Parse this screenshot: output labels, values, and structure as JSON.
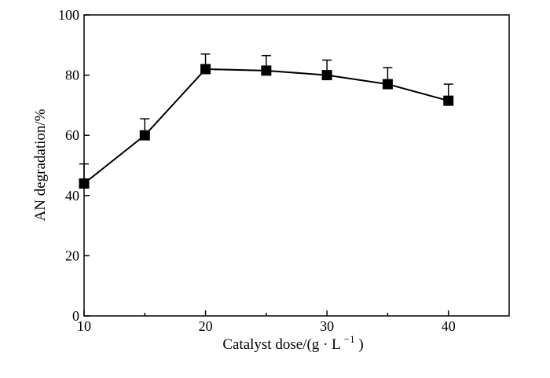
{
  "chart_data": {
    "type": "line",
    "xlabel_main": "Catalyst dose/(g · L",
    "xlabel_sup": "−1",
    "xlabel_close": ")",
    "ylabel": "AN degradation/%",
    "xlim": [
      10,
      45
    ],
    "ylim": [
      0,
      100
    ],
    "x_ticks": [
      10,
      20,
      30,
      40
    ],
    "y_ticks": [
      0,
      20,
      40,
      60,
      80,
      100
    ],
    "x_ticks_minor": [
      15,
      25,
      35
    ],
    "series": [
      {
        "x": [
          10,
          15,
          20,
          25,
          30,
          35,
          40
        ],
        "y": [
          44,
          60,
          82,
          81.5,
          80,
          77,
          71.5
        ],
        "error_upper": [
          6.5,
          5.5,
          5,
          5,
          5,
          5.5,
          5.5
        ]
      }
    ],
    "grid": false,
    "legend": "none"
  }
}
